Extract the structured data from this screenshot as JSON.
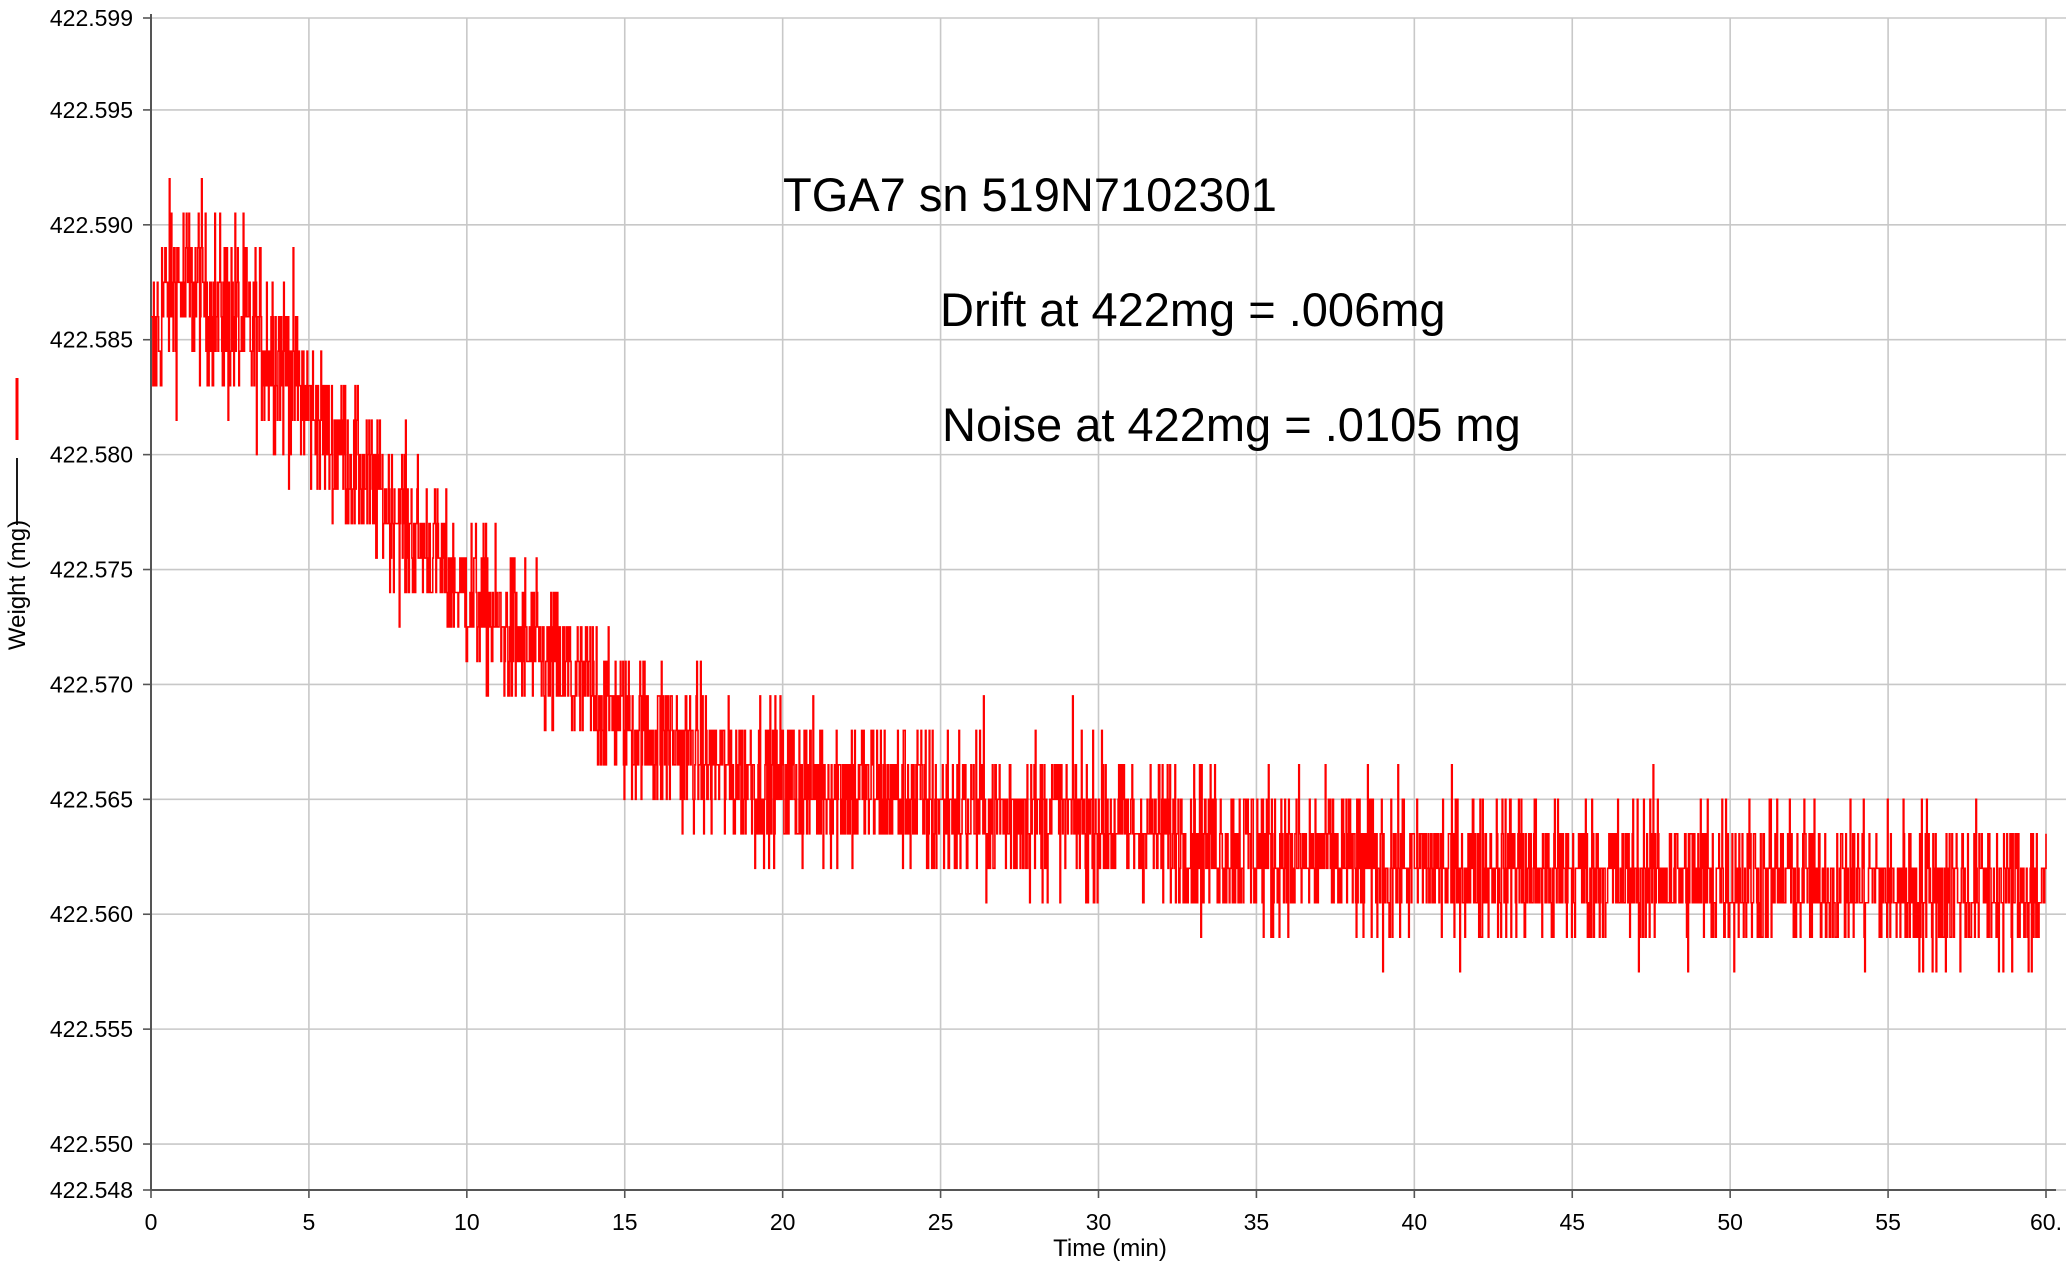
{
  "chart_data": {
    "type": "line",
    "xlabel": "Time (min)",
    "ylabel": "Weight (mg)",
    "xlim": [
      0,
      60
    ],
    "ylim": [
      422.548,
      422.599
    ],
    "x_ticks": [
      "0",
      "5",
      "10",
      "15",
      "20",
      "25",
      "30",
      "35",
      "40",
      "45",
      "50",
      "55",
      "60."
    ],
    "y_ticks": [
      "422.599",
      "422.595",
      "422.590",
      "422.585",
      "422.580",
      "422.575",
      "422.570",
      "422.565",
      "422.560",
      "422.555",
      "422.550",
      "422.548"
    ],
    "grid": true,
    "legend": "left-vertical-swatch",
    "annotations": [
      "TGA7 sn 519N7102301",
      "Drift at 422mg = .006mg",
      "Noise at 422mg = .0105 mg"
    ],
    "series": [
      {
        "color": "#ff0000",
        "x": [
          0,
          0.5,
          1,
          1.5,
          2,
          2.5,
          3,
          3.5,
          4,
          4.5,
          5,
          6,
          7,
          8,
          9,
          10,
          11,
          12,
          13,
          14,
          15,
          16,
          17,
          18,
          19,
          20,
          22,
          24,
          26,
          28,
          30,
          32,
          34,
          36,
          38,
          40,
          42,
          44,
          46,
          48,
          50,
          52,
          54,
          56,
          58,
          60
        ],
        "y": [
          422.584,
          422.587,
          422.5875,
          422.587,
          422.5865,
          422.586,
          422.5855,
          422.585,
          422.5845,
          422.5835,
          422.582,
          422.5805,
          422.5785,
          422.577,
          422.5755,
          422.574,
          422.5725,
          422.5715,
          422.5705,
          422.5695,
          422.5685,
          422.5678,
          422.567,
          422.5665,
          422.566,
          422.5657,
          422.5655,
          422.565,
          422.5645,
          422.5643,
          422.564,
          422.5635,
          422.563,
          422.5625,
          422.5623,
          422.562,
          422.562,
          422.5618,
          422.5617,
          422.5617,
          422.5616,
          422.5615,
          422.5613,
          422.5612,
          422.561,
          422.5609
        ]
      }
    ]
  },
  "colors": {
    "series": "#ff0000",
    "grid": "#c8c8c8",
    "axis": "#555555"
  }
}
